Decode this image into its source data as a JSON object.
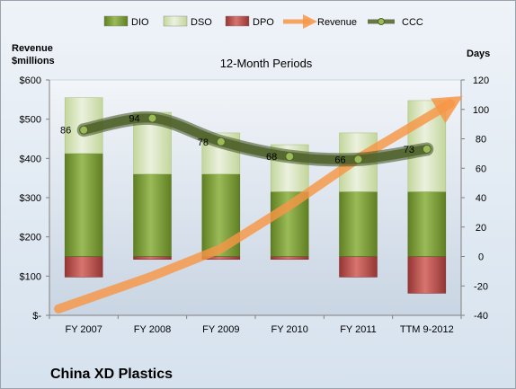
{
  "chart_data": {
    "type": "bar",
    "title": "12-Month Periods",
    "company": "China XD Plastics",
    "left_axis_label": "Revenue\n$millions",
    "right_axis_label": "Days",
    "categories": [
      "FY 2007",
      "FY 2008",
      "FY 2009",
      "FY 2010",
      "FY 2011",
      "TTM 9-2012"
    ],
    "left_ticks": [
      "$-",
      "$100",
      "$200",
      "$300",
      "$400",
      "$500",
      "$600"
    ],
    "right_ticks": [
      "-40",
      "-20",
      "0",
      "20",
      "40",
      "60",
      "80",
      "100",
      "120"
    ],
    "left_ylim": [
      0,
      600
    ],
    "right_ylim": [
      -40,
      120
    ],
    "legend": [
      "DIO",
      "DSO",
      "DPO",
      "Revenue",
      "CCC"
    ],
    "legend_position": "top",
    "series": [
      {
        "name": "DIO",
        "axis": "right",
        "kind": "stacked-bar",
        "color": "#7a9a35",
        "values": [
          70,
          56,
          56,
          44,
          44,
          44
        ]
      },
      {
        "name": "DSO",
        "axis": "right",
        "kind": "stacked-bar",
        "color": "#d7e4bd",
        "values": [
          38,
          42,
          28,
          32,
          40,
          62
        ]
      },
      {
        "name": "DPO",
        "axis": "right",
        "kind": "negative-bar",
        "color": "#c0504d",
        "values": [
          -14,
          -2,
          -2,
          -2,
          -14,
          -25
        ]
      },
      {
        "name": "Revenue",
        "axis": "left",
        "kind": "arrow-line",
        "color": "#f79646",
        "values": [
          30,
          100,
          170,
          280,
          400,
          540
        ]
      },
      {
        "name": "CCC",
        "axis": "right",
        "kind": "smooth-line",
        "color": "#4f6228",
        "values": [
          86,
          94,
          78,
          68,
          66,
          73
        ],
        "labels": [
          "86",
          "94",
          "78",
          "68",
          "66",
          "73"
        ]
      }
    ]
  }
}
